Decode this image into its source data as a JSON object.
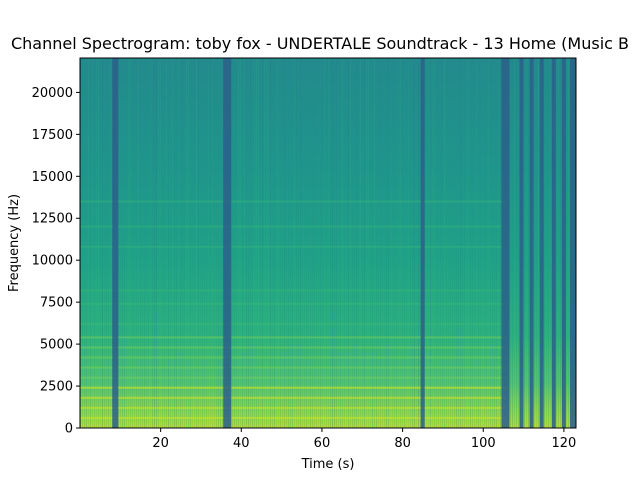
{
  "chart_data": {
    "type": "heatmap",
    "title": "Channel Spectrogram: toby fox - UNDERTALE Soundtrack - 13 Home (Music B",
    "xlabel": "Time (s)",
    "ylabel": "Frequency (Hz)",
    "xlim": [
      0,
      123
    ],
    "ylim": [
      0,
      22050
    ],
    "xticks": [
      20,
      40,
      60,
      80,
      100,
      120
    ],
    "yticks": [
      0,
      2500,
      5000,
      7500,
      10000,
      12500,
      15000,
      17500,
      20000
    ],
    "colormap": "viridis",
    "grid": false,
    "legend": "none",
    "dark_time_bands_s": [
      [
        8,
        9.5
      ],
      [
        35.5,
        37.5
      ],
      [
        84.5,
        85.5
      ],
      [
        104.5,
        106.5
      ],
      [
        109,
        110
      ],
      [
        111.5,
        112.5
      ],
      [
        114,
        115
      ],
      [
        117,
        118
      ],
      [
        119.5,
        120.5
      ],
      [
        121.5,
        123
      ]
    ],
    "harmonic_bands_hz": [
      600,
      1200,
      1800,
      2400,
      3000,
      3600,
      4200,
      4800,
      5400,
      6200,
      7400,
      8200,
      10800,
      12000,
      13500
    ]
  }
}
